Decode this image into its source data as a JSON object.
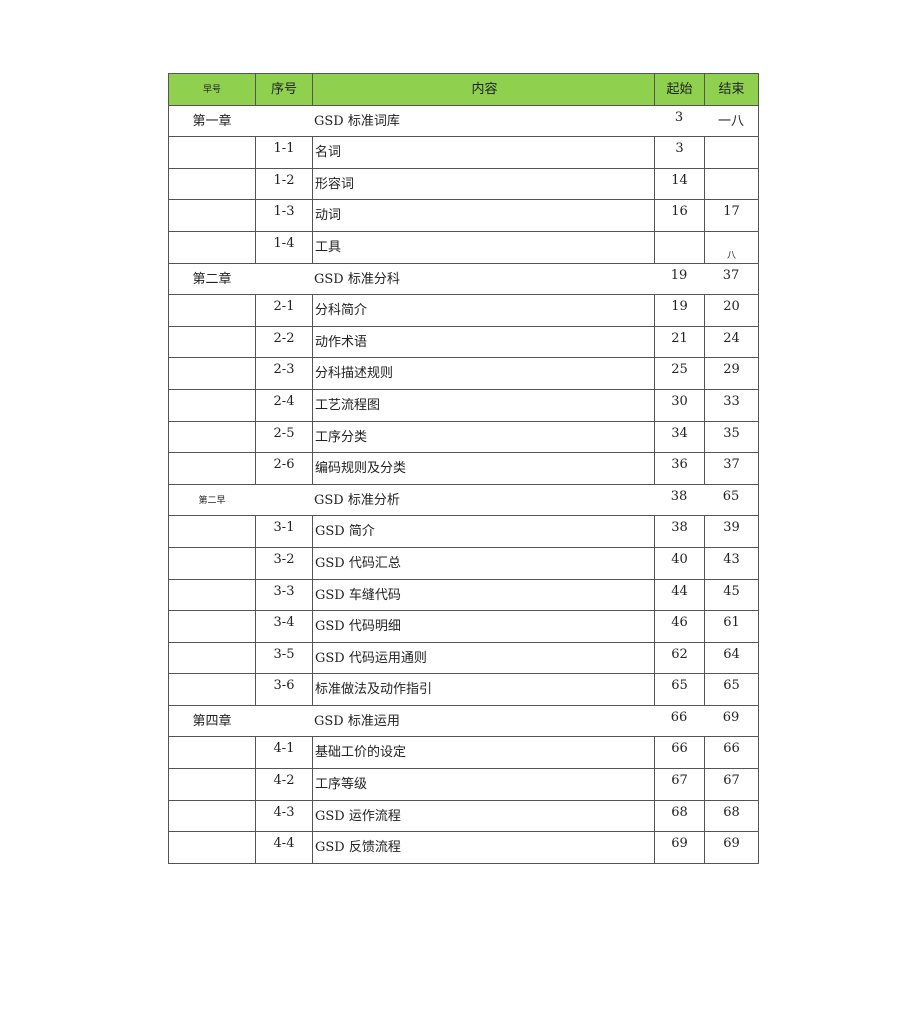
{
  "header": {
    "chapter": "早号",
    "seq": "序号",
    "content": "内容",
    "start": "起始",
    "end": "结束"
  },
  "rows": [
    {
      "type": "chapter",
      "chapter": "第一章",
      "seq": "",
      "content": "GSD 标准词库",
      "start": "3",
      "end": "一八"
    },
    {
      "type": "sub",
      "chapter": "",
      "seq": "1-1",
      "content": "名词",
      "start": "3",
      "end": ""
    },
    {
      "type": "sub",
      "chapter": "",
      "seq": "1-2",
      "content": "形容词",
      "start": "14",
      "end": ""
    },
    {
      "type": "sub",
      "chapter": "",
      "seq": "1-3",
      "content": "动词",
      "start": "16",
      "end": "17"
    },
    {
      "type": "sub",
      "chapter": "",
      "seq": "1-4",
      "content": "工具",
      "start": "",
      "end": "八"
    },
    {
      "type": "chapter",
      "chapter": "第二章",
      "seq": "",
      "content": "GSD 标准分科",
      "start": "19",
      "end": "37"
    },
    {
      "type": "sub",
      "chapter": "",
      "seq": "2-1",
      "content": "分科简介",
      "start": "19",
      "end": "20"
    },
    {
      "type": "sub",
      "chapter": "",
      "seq": "2-2",
      "content": "动作术语",
      "start": "21",
      "end": "24"
    },
    {
      "type": "sub",
      "chapter": "",
      "seq": "2-3",
      "content": "分科描述规则",
      "start": "25",
      "end": "29"
    },
    {
      "type": "sub",
      "chapter": "",
      "seq": "2-4",
      "content": "工艺流程图",
      "start": "30",
      "end": "33"
    },
    {
      "type": "sub",
      "chapter": "",
      "seq": "2-5",
      "content": "工序分类",
      "start": "34",
      "end": "35"
    },
    {
      "type": "sub",
      "chapter": "",
      "seq": "2-6",
      "content": "编码规则及分类",
      "start": "36",
      "end": "37"
    },
    {
      "type": "chapter",
      "chapter": "第二早",
      "seq": "",
      "content": "GSD 标准分析",
      "start": "38",
      "end": "65"
    },
    {
      "type": "sub",
      "chapter": "",
      "seq": "3-1",
      "content": "GSD 简介",
      "start": "38",
      "end": "39"
    },
    {
      "type": "sub",
      "chapter": "",
      "seq": "3-2",
      "content": "GSD 代码汇总",
      "start": "40",
      "end": "43"
    },
    {
      "type": "sub",
      "chapter": "",
      "seq": "3-3",
      "content": "GSD 车缝代码",
      "start": "44",
      "end": "45"
    },
    {
      "type": "sub",
      "chapter": "",
      "seq": "3-4",
      "content": "GSD 代码明细",
      "start": "46",
      "end": "61"
    },
    {
      "type": "sub",
      "chapter": "",
      "seq": "3-5",
      "content": "GSD 代码运用通则",
      "start": "62",
      "end": "64"
    },
    {
      "type": "sub",
      "chapter": "",
      "seq": "3-6",
      "content": "标准做法及动作指引",
      "start": "65",
      "end": "65"
    },
    {
      "type": "chapter",
      "chapter": "第四章",
      "seq": "",
      "content": "GSD 标准运用",
      "start": "66",
      "end": "69"
    },
    {
      "type": "sub",
      "chapter": "",
      "seq": "4-1",
      "content": "基础工价的设定",
      "start": "66",
      "end": "66"
    },
    {
      "type": "sub",
      "chapter": "",
      "seq": "4-2",
      "content": "工序等级",
      "start": "67",
      "end": "67"
    },
    {
      "type": "sub",
      "chapter": "",
      "seq": "4-3",
      "content": "GSD 运作流程",
      "start": "68",
      "end": "68"
    },
    {
      "type": "sub",
      "chapter": "",
      "seq": "4-4",
      "content": "GSD 反馈流程",
      "start": "69",
      "end": "69"
    }
  ]
}
